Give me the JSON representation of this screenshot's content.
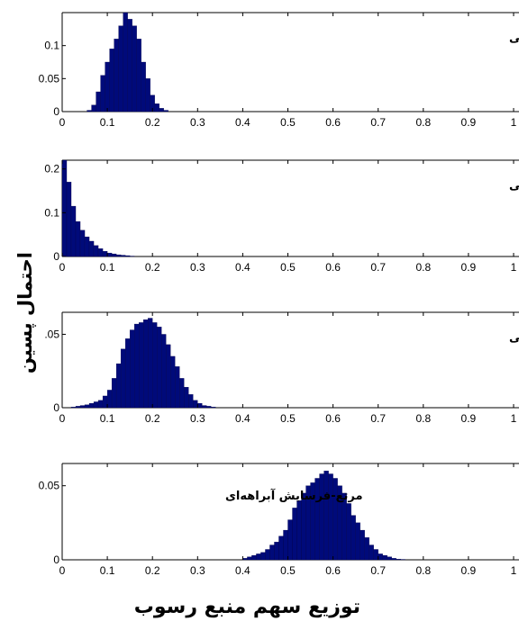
{
  "xlabel": "توزیع سهم منبع رسوب",
  "ylabel": "احتمال پسین",
  "colors": {
    "bar": "#000a7a",
    "bar_edge": "#000044",
    "axis": "#000000",
    "background": "#ffffff"
  },
  "chart_data": [
    {
      "type": "bar",
      "annotation": "مرتع-فرسایش سطحی",
      "annotation_align": "right",
      "xlim": [
        0,
        1
      ],
      "ylim": [
        0,
        0.15
      ],
      "xticks": [
        "0",
        "0.1",
        "0.2",
        "0.3",
        "0.4",
        "0.5",
        "0.6",
        "0.7",
        "0.8",
        "0.9",
        "1"
      ],
      "yticks": [
        {
          "v": 0,
          "label": "0"
        },
        {
          "v": 0.05,
          "label": "0.05"
        },
        {
          "v": 0.1,
          "label": "0.1"
        }
      ],
      "bin_start": 0.055,
      "bin_width": 0.01,
      "values": [
        0.002,
        0.01,
        0.03,
        0.055,
        0.075,
        0.095,
        0.11,
        0.13,
        0.15,
        0.14,
        0.13,
        0.11,
        0.075,
        0.05,
        0.025,
        0.012,
        0.005,
        0.002
      ]
    },
    {
      "type": "bar",
      "annotation": "اراضی کشاورزی-فرسایش سطحی",
      "annotation_align": "right",
      "xlim": [
        0,
        1
      ],
      "ylim": [
        0,
        0.22
      ],
      "xticks": [
        "0",
        "0.1",
        "0.2",
        "0.3",
        "0.4",
        "0.5",
        "0.6",
        "0.7",
        "0.8",
        "0.9",
        "1"
      ],
      "yticks": [
        {
          "v": 0,
          "label": "0"
        },
        {
          "v": 0.1,
          "label": "0.1"
        },
        {
          "v": 0.2,
          "label": "0.2"
        }
      ],
      "bin_start": 0.0,
      "bin_width": 0.01,
      "values": [
        0.22,
        0.17,
        0.115,
        0.08,
        0.06,
        0.045,
        0.035,
        0.025,
        0.018,
        0.012,
        0.008,
        0.006,
        0.004,
        0.003,
        0.002,
        0.001
      ]
    },
    {
      "type": "bar",
      "annotation": "اراضی دیم- فرسایش سطحی",
      "annotation_align": "right",
      "xlim": [
        0,
        1
      ],
      "ylim": [
        0,
        0.065
      ],
      "xticks": [
        "0",
        "0.1",
        "0.2",
        "0.3",
        "0.4",
        "0.5",
        "0.6",
        "0.7",
        "0.8",
        "0.9",
        "1"
      ],
      "yticks": [
        {
          "v": 0,
          "label": "0"
        },
        {
          "v": 0.05,
          "label": ".05"
        }
      ],
      "bin_start": 0.02,
      "bin_width": 0.01,
      "values": [
        0.0005,
        0.001,
        0.0015,
        0.002,
        0.003,
        0.004,
        0.005,
        0.008,
        0.012,
        0.02,
        0.03,
        0.04,
        0.047,
        0.053,
        0.057,
        0.058,
        0.06,
        0.061,
        0.058,
        0.055,
        0.05,
        0.043,
        0.035,
        0.028,
        0.02,
        0.014,
        0.009,
        0.005,
        0.003,
        0.0015,
        0.001,
        0.0005
      ]
    },
    {
      "type": "bar",
      "annotation": "مرتع-فرسایش آبراهه‌ای",
      "annotation_align": "left",
      "xlim": [
        0,
        1
      ],
      "ylim": [
        0,
        0.065
      ],
      "xticks": [
        "0",
        "0.1",
        "0.2",
        "0.3",
        "0.4",
        "0.5",
        "0.6",
        "0.7",
        "0.8",
        "0.9",
        "1"
      ],
      "yticks": [
        {
          "v": 0,
          "label": "0"
        },
        {
          "v": 0.05,
          "label": "0.05"
        }
      ],
      "bin_start": 0.4,
      "bin_width": 0.01,
      "values": [
        0.001,
        0.002,
        0.003,
        0.004,
        0.005,
        0.007,
        0.01,
        0.012,
        0.016,
        0.02,
        0.027,
        0.035,
        0.04,
        0.045,
        0.05,
        0.052,
        0.055,
        0.058,
        0.06,
        0.058,
        0.055,
        0.05,
        0.045,
        0.038,
        0.03,
        0.025,
        0.02,
        0.015,
        0.01,
        0.007,
        0.004,
        0.003,
        0.002,
        0.001,
        0.0005,
        0.0003
      ]
    }
  ]
}
